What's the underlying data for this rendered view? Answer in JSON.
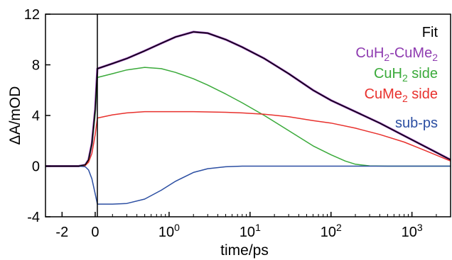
{
  "chart_data": {
    "type": "line",
    "title": "",
    "xlabel": "time/ps",
    "ylabel": "ΔA/mOD",
    "ylim": [
      -4,
      12
    ],
    "xscale": "linear from -3 to 0.13 ps, logarithmic from 0.13 to 3000 ps",
    "grid": false,
    "legend_position": "top-right",
    "x_ticks": [
      {
        "value": -2,
        "label": "-2"
      },
      {
        "value": 0,
        "label": "0"
      },
      {
        "value": 1,
        "label": "10",
        "exp": "0"
      },
      {
        "value": 10,
        "label": "10",
        "exp": "1"
      },
      {
        "value": 100,
        "label": "10",
        "exp": "2"
      },
      {
        "value": 1000,
        "label": "10",
        "exp": "3"
      }
    ],
    "y_ticks": [
      {
        "value": -4,
        "label": "-4"
      },
      {
        "value": 0,
        "label": "0"
      },
      {
        "value": 4,
        "label": "4"
      },
      {
        "value": 8,
        "label": "8"
      },
      {
        "value": 12,
        "label": "12"
      }
    ],
    "vertical_marker_x": 0.13,
    "series": [
      {
        "name": "Fit",
        "color": "#000000",
        "x": [
          -3,
          -1,
          -0.6,
          -0.4,
          -0.2,
          0,
          0.13,
          0.2,
          0.3,
          0.5,
          0.8,
          1.2,
          2,
          3,
          5,
          8,
          15,
          30,
          60,
          100,
          200,
          400,
          800,
          1500,
          3000
        ],
        "y": [
          0,
          0,
          0.1,
          0.5,
          1.8,
          4.5,
          7.7,
          8.1,
          8.5,
          9.1,
          9.7,
          10.2,
          10.6,
          10.5,
          10.0,
          9.4,
          8.5,
          7.3,
          6.0,
          5.2,
          4.3,
          3.4,
          2.4,
          1.5,
          0.5
        ]
      },
      {
        "name": "CuH2-CuMe2",
        "label_main": "CuH",
        "label_sub1": "2",
        "label_mid": "-CuMe",
        "label_sub2": "2",
        "color": "#8e3bb0",
        "x": [
          -3,
          -1,
          -0.6,
          -0.4,
          -0.2,
          0,
          0.13,
          0.2,
          0.3,
          0.5,
          0.8,
          1.2,
          2,
          3,
          5,
          8,
          15,
          30,
          60,
          100,
          200,
          400,
          800,
          1500,
          3000
        ],
        "y": [
          0,
          0,
          0.1,
          0.5,
          1.8,
          4.5,
          7.7,
          8.1,
          8.5,
          9.1,
          9.7,
          10.2,
          10.6,
          10.5,
          10.0,
          9.4,
          8.5,
          7.3,
          6.0,
          5.2,
          4.3,
          3.4,
          2.4,
          1.5,
          0.5
        ]
      },
      {
        "name": "CuH2 side",
        "label_main": "CuH",
        "label_sub1": "2",
        "label_mid": " side",
        "color": "#3aaa3a",
        "x": [
          -3,
          -1,
          -0.6,
          -0.4,
          -0.2,
          0,
          0.13,
          0.2,
          0.3,
          0.5,
          0.8,
          1.2,
          2,
          3,
          5,
          8,
          15,
          30,
          60,
          100,
          150,
          200,
          300,
          500,
          1000,
          3000
        ],
        "y": [
          0,
          0,
          0.1,
          0.5,
          1.7,
          4.2,
          7.0,
          7.3,
          7.6,
          7.8,
          7.7,
          7.4,
          6.9,
          6.4,
          5.7,
          5.0,
          4.0,
          2.8,
          1.6,
          0.9,
          0.4,
          0.15,
          0.02,
          0,
          0,
          0
        ]
      },
      {
        "name": "CuMe2 side",
        "label_main": "CuMe",
        "label_sub1": "2",
        "label_mid": " side",
        "color": "#e8312d",
        "x": [
          -3,
          -1,
          -0.6,
          -0.4,
          -0.2,
          0,
          0.13,
          0.2,
          0.3,
          0.5,
          0.8,
          1.2,
          2,
          3,
          5,
          8,
          15,
          30,
          60,
          100,
          200,
          400,
          800,
          1500,
          3000
        ],
        "y": [
          0,
          0,
          0.05,
          0.3,
          1.0,
          2.5,
          3.8,
          4.05,
          4.2,
          4.3,
          4.3,
          4.3,
          4.3,
          4.28,
          4.25,
          4.2,
          4.1,
          3.9,
          3.6,
          3.4,
          3.0,
          2.5,
          1.9,
          1.2,
          0.4
        ]
      },
      {
        "name": "sub-ps",
        "color": "#2b4ea2",
        "x": [
          -3,
          -1,
          -0.6,
          -0.4,
          -0.2,
          0,
          0.13,
          0.2,
          0.3,
          0.5,
          0.8,
          1.2,
          2,
          3,
          5,
          8,
          15,
          3000
        ],
        "y": [
          0,
          0,
          -0.05,
          -0.3,
          -1.0,
          -2.2,
          -3.0,
          -3.0,
          -2.95,
          -2.6,
          -1.9,
          -1.2,
          -0.5,
          -0.2,
          -0.05,
          0,
          0,
          0
        ]
      }
    ]
  }
}
